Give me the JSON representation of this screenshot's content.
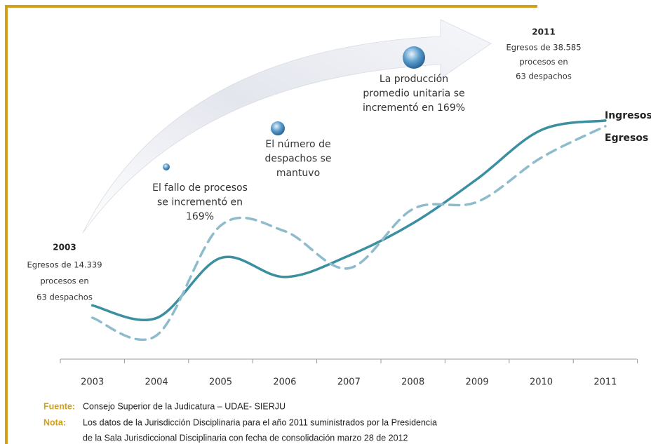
{
  "chart_data": {
    "type": "line",
    "categories": [
      "2003",
      "2004",
      "2005",
      "2006",
      "2007",
      "2008",
      "2009",
      "2010",
      "2011"
    ],
    "series": [
      {
        "name": "Ingresos",
        "color": "#3a8fa0",
        "dash": false,
        "values": [
          15900,
          14300,
          21900,
          19500,
          22200,
          26300,
          31900,
          38100,
          39300
        ]
      },
      {
        "name": "Egresos",
        "color": "#8fbccc",
        "dash": true,
        "values": [
          14339,
          12100,
          26000,
          25300,
          20600,
          28100,
          29000,
          34600,
          38585
        ]
      }
    ],
    "ylim": [
      9100,
      51900
    ],
    "grid": false,
    "annotations": [
      {
        "heading": "2003",
        "lines": [
          "Egresos de 14.339",
          "procesos en",
          "63 despachos"
        ]
      },
      {
        "lines": [
          "El fallo de procesos",
          "se incrementó en",
          "169%"
        ]
      },
      {
        "lines": [
          "El número de",
          "despachos se",
          "mantuvo"
        ]
      },
      {
        "lines": [
          "La producción",
          "promedio unitaria se",
          "incrementó en 169%"
        ]
      },
      {
        "heading": "2011",
        "lines": [
          "Egresos de 38.585",
          "procesos en",
          "63 despachos"
        ]
      }
    ]
  },
  "footer": {
    "source_label": "Fuente:",
    "source_text": "Consejo Superior de la Judicatura – UDAE- SIERJU",
    "note_label": "Nota:",
    "note_lines": [
      "Los datos de la Jurisdicción Disciplinaria para el año 2011 suministrados por la Presidencia",
      "de la Sala Jurisdiccional Disciplinaria con fecha de consolidación marzo 28 de 2012"
    ]
  }
}
